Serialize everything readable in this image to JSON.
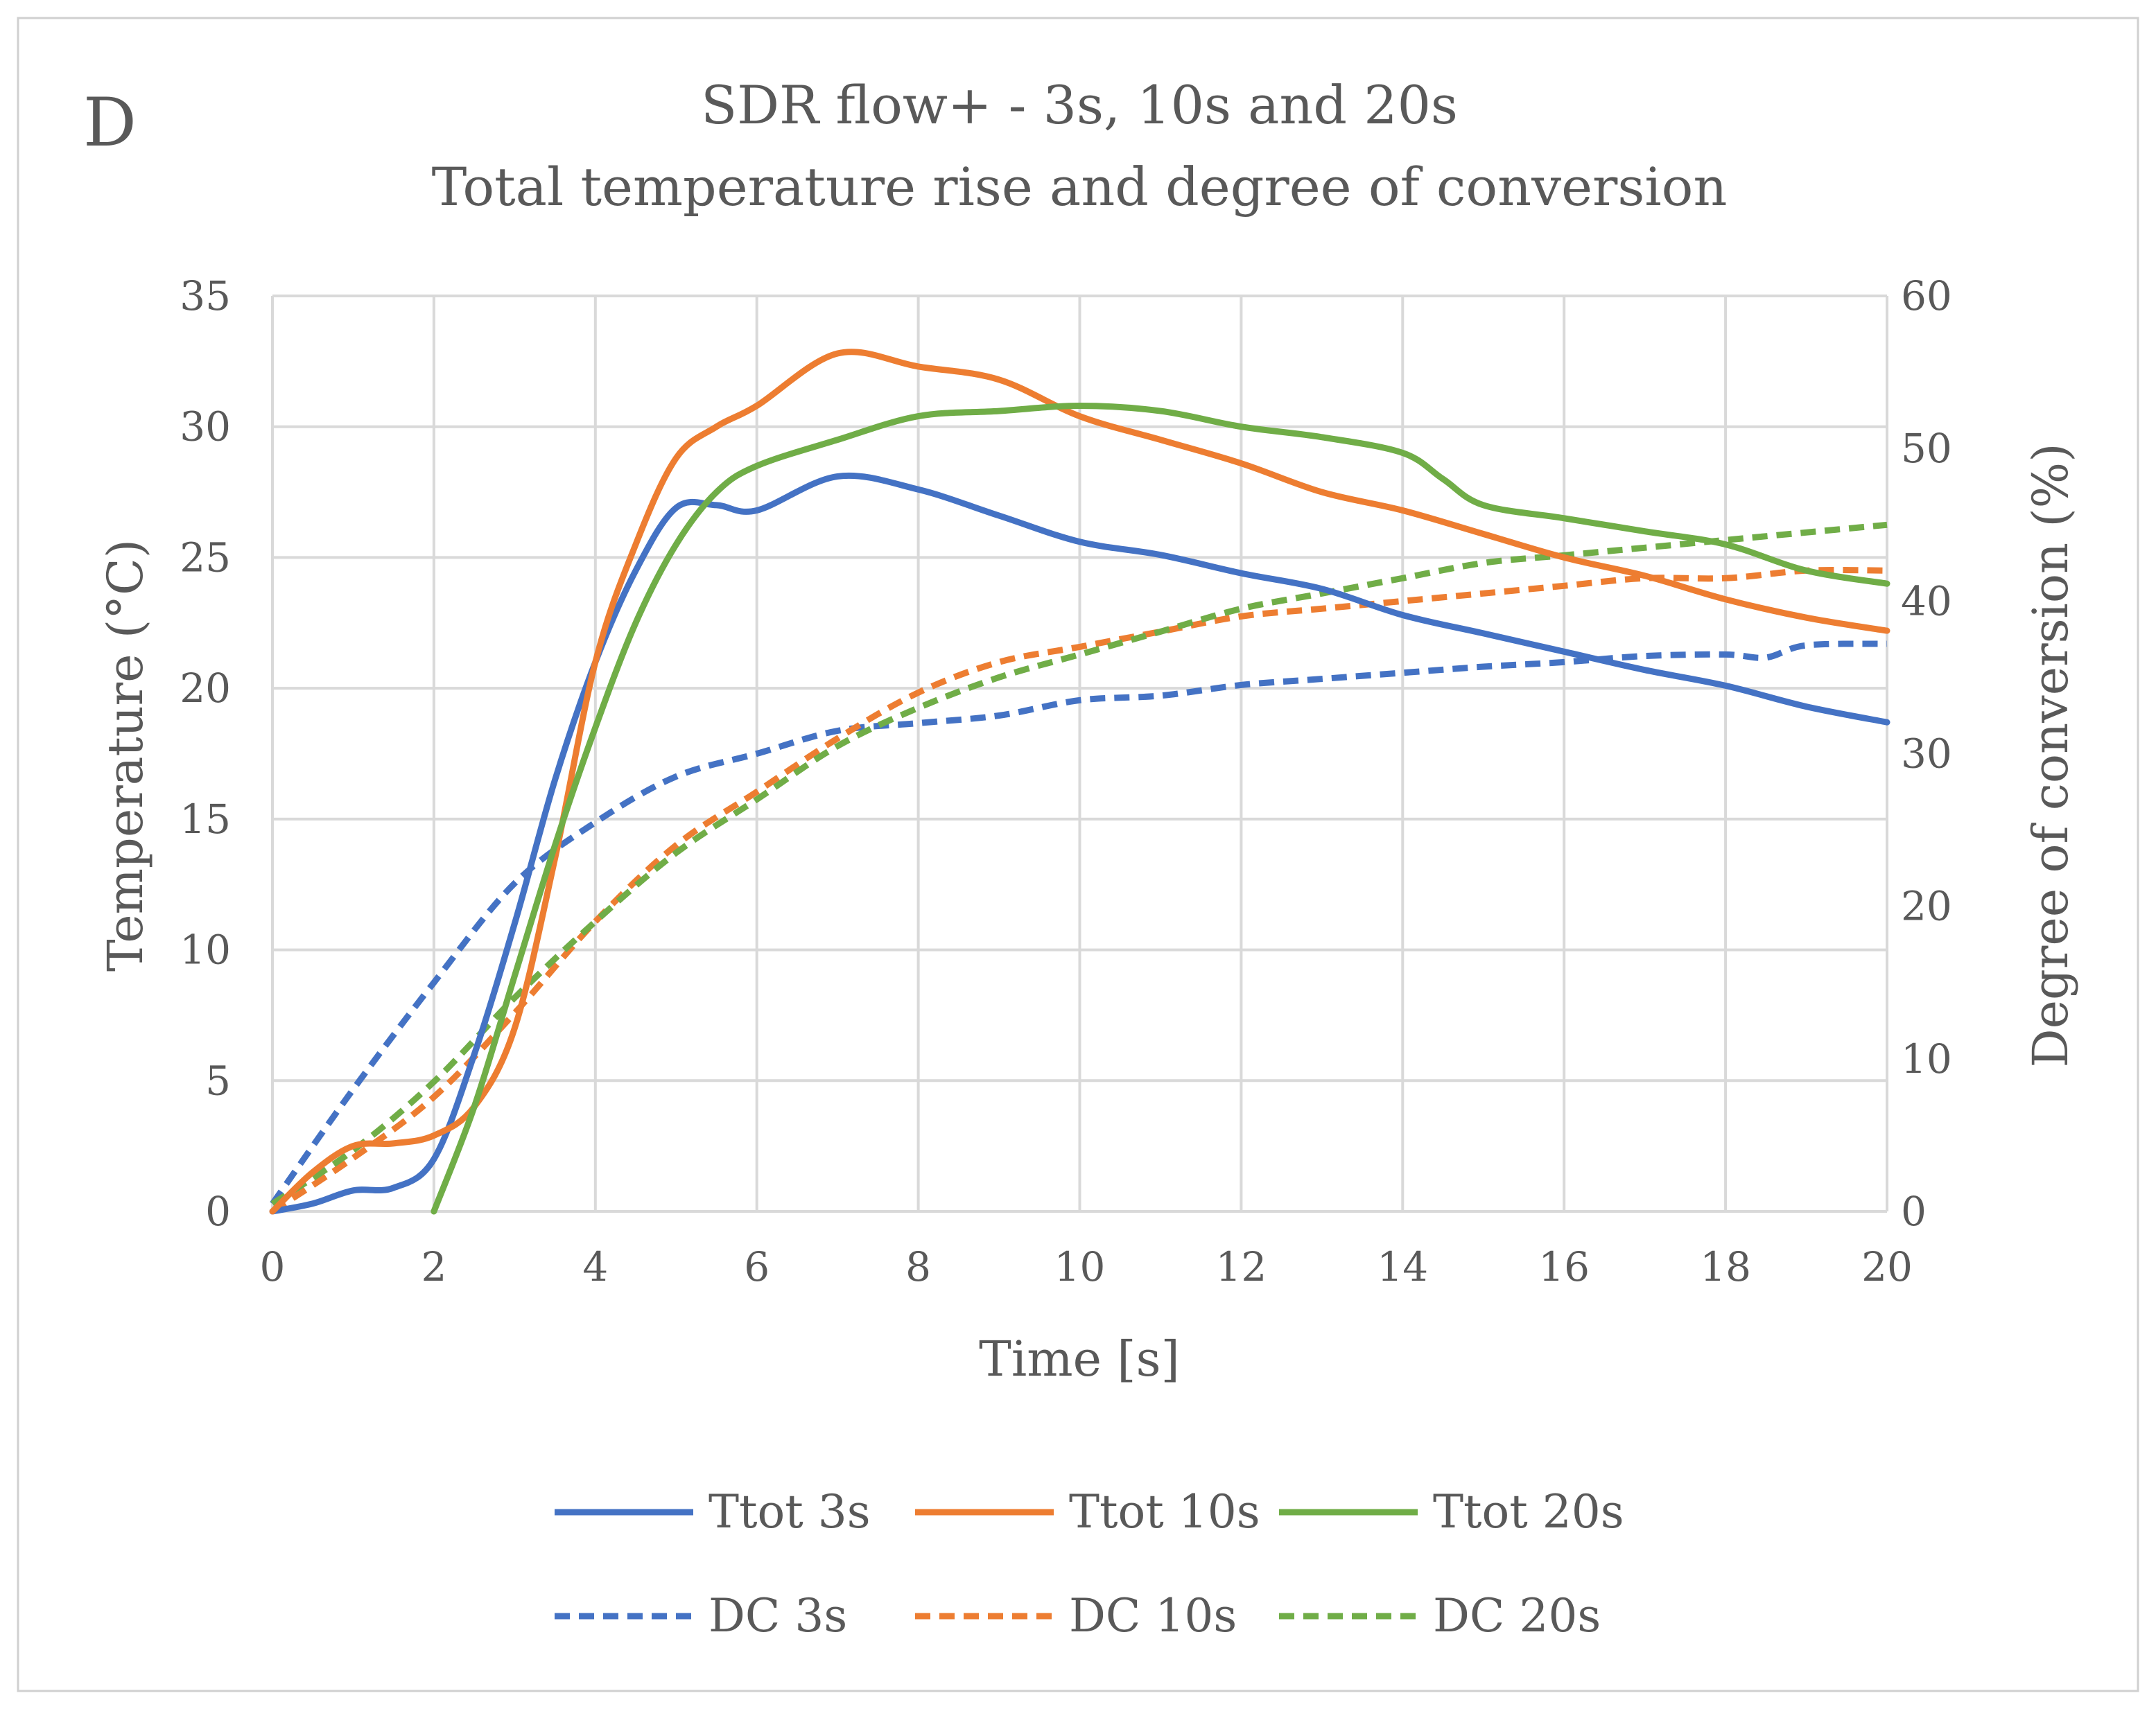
{
  "chart_data": {
    "type": "line",
    "panel_label": "D",
    "title_line1": "SDR flow+ - 3s, 10s and 20s",
    "title_line2": "Total temperature rise and degree of conversion",
    "xlabel": "Time [s]",
    "ylabel": "Temperature (°C)",
    "y2label": "Degree of conversion (%)",
    "xlim": [
      0,
      20
    ],
    "ylim": [
      0,
      35
    ],
    "y2lim": [
      0,
      60
    ],
    "xticks": [
      "0",
      "2",
      "4",
      "6",
      "8",
      "10",
      "12",
      "14",
      "16",
      "18",
      "20"
    ],
    "yticks": [
      "0",
      "5",
      "10",
      "15",
      "20",
      "25",
      "30",
      "35"
    ],
    "y2ticks": [
      "0",
      "10",
      "20",
      "30",
      "40",
      "50",
      "60"
    ],
    "grid": true,
    "legend_position": "bottom",
    "series": [
      {
        "name": "Ttot 3s",
        "axis": "left",
        "color": "#4472C4",
        "dashed": false,
        "x": [
          0,
          0.5,
          1,
          1.5,
          2,
          2.5,
          3,
          3.5,
          4,
          4.5,
          5,
          5.5,
          6,
          7,
          8,
          9,
          10,
          11,
          12,
          13,
          14,
          15,
          16,
          17,
          18,
          19,
          20
        ],
        "y": [
          0,
          0.3,
          0.8,
          0.9,
          2.0,
          6.0,
          11.0,
          16.5,
          21.0,
          24.5,
          26.9,
          27.0,
          26.8,
          28.1,
          27.6,
          26.6,
          25.6,
          25.1,
          24.4,
          23.8,
          22.8,
          22.1,
          21.4,
          20.7,
          20.1,
          19.3,
          18.7
        ]
      },
      {
        "name": "Ttot 10s",
        "axis": "left",
        "color": "#ED7D31",
        "dashed": false,
        "x": [
          0,
          0.5,
          1,
          1.5,
          2,
          2.5,
          3,
          3.5,
          4,
          4.5,
          5,
          5.5,
          6,
          7,
          8,
          9,
          10,
          11,
          12,
          13,
          14,
          15,
          16,
          17,
          18,
          19,
          20
        ],
        "y": [
          0,
          1.5,
          2.5,
          2.6,
          2.9,
          4.0,
          7.0,
          13.5,
          21.0,
          25.5,
          28.8,
          30.0,
          30.8,
          32.8,
          32.3,
          31.8,
          30.4,
          29.5,
          28.6,
          27.5,
          26.8,
          25.9,
          25.0,
          24.3,
          23.4,
          22.7,
          22.2
        ]
      },
      {
        "name": "Ttot 20s",
        "axis": "left",
        "color": "#70AD47",
        "dashed": false,
        "x": [
          2,
          2.5,
          3,
          3.5,
          4,
          4.5,
          5,
          5.5,
          6,
          7,
          8,
          9,
          10,
          11,
          12,
          13,
          14,
          14.5,
          15,
          16,
          17,
          18,
          19,
          20
        ],
        "y": [
          0,
          4.0,
          9.0,
          14.0,
          18.5,
          22.5,
          25.5,
          27.5,
          28.5,
          29.5,
          30.4,
          30.6,
          30.8,
          30.6,
          30.0,
          29.6,
          29.0,
          28.0,
          27.0,
          26.5,
          26.0,
          25.5,
          24.5,
          24.0
        ]
      },
      {
        "name": "DC 3s",
        "axis": "right",
        "color": "#4472C4",
        "dashed": true,
        "x": [
          0,
          1,
          2,
          3,
          4,
          5,
          6,
          7,
          8,
          9,
          10,
          11,
          12,
          13,
          14,
          15,
          16,
          17,
          18,
          18.5,
          19,
          20
        ],
        "y": [
          0.5,
          8.0,
          15.0,
          21.5,
          25.5,
          28.5,
          30.0,
          31.5,
          32.0,
          32.5,
          33.5,
          33.8,
          34.5,
          34.9,
          35.3,
          35.7,
          36.0,
          36.4,
          36.5,
          36.3,
          37.1,
          37.2
        ]
      },
      {
        "name": "DC 10s",
        "axis": "right",
        "color": "#ED7D31",
        "dashed": true,
        "x": [
          0,
          1,
          2,
          3,
          4,
          5,
          6,
          7,
          8,
          9,
          10,
          11,
          12,
          13,
          14,
          15,
          16,
          17,
          18,
          19,
          20
        ],
        "y": [
          0,
          3.5,
          7.5,
          13.0,
          19.0,
          24.0,
          27.5,
          31.0,
          34.0,
          36.0,
          37.0,
          38.0,
          39.0,
          39.5,
          40.0,
          40.5,
          41.0,
          41.5,
          41.5,
          42.0,
          42.0
        ]
      },
      {
        "name": "DC 20s",
        "axis": "right",
        "color": "#70AD47",
        "dashed": true,
        "x": [
          0,
          1,
          2,
          3,
          4,
          5,
          6,
          7,
          8,
          9,
          10,
          11,
          12,
          13,
          14,
          15,
          16,
          17,
          18,
          19,
          20
        ],
        "y": [
          0.5,
          4.0,
          8.5,
          14.0,
          19.0,
          23.5,
          27.0,
          30.5,
          33.0,
          35.0,
          36.5,
          38.0,
          39.5,
          40.5,
          41.5,
          42.5,
          43.0,
          43.5,
          44.0,
          44.5,
          45.0
        ]
      }
    ]
  }
}
